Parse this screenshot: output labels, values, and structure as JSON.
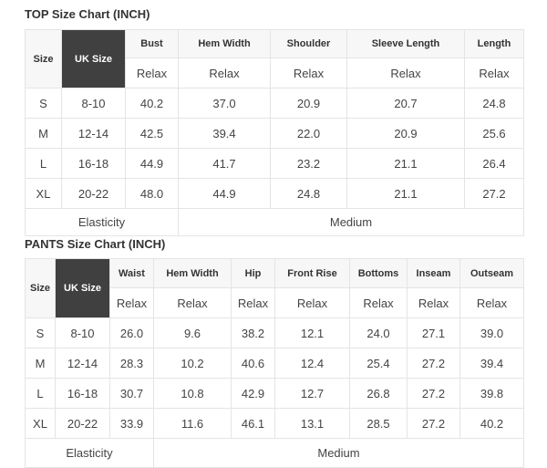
{
  "top": {
    "title": "TOP Size Chart (INCH)",
    "size_label": "Size",
    "uk_label": "UK Size",
    "columns": [
      "Bust",
      "Hem Width",
      "Shoulder",
      "Sleeve Length",
      "Length"
    ],
    "fit": [
      "Relax",
      "Relax",
      "Relax",
      "Relax",
      "Relax"
    ],
    "rows": [
      [
        "S",
        "8-10",
        "40.2",
        "37.0",
        "20.9",
        "20.7",
        "24.8"
      ],
      [
        "M",
        "12-14",
        "42.5",
        "39.4",
        "22.0",
        "20.9",
        "25.6"
      ],
      [
        "L",
        "16-18",
        "44.9",
        "41.7",
        "23.2",
        "21.1",
        "26.4"
      ],
      [
        "XL",
        "20-22",
        "48.0",
        "44.9",
        "24.8",
        "21.1",
        "27.2"
      ]
    ],
    "elasticity_label": "Elasticity",
    "elasticity_value": "Medium"
  },
  "pants": {
    "title": "PANTS Size Chart (INCH)",
    "size_label": "Size",
    "uk_label": "UK Size",
    "columns": [
      "Waist",
      "Hem Width",
      "Hip",
      "Front Rise",
      "Bottoms",
      "Inseam",
      "Outseam"
    ],
    "fit": [
      "Relax",
      "Relax",
      "Relax",
      "Relax",
      "Relax",
      "Relax",
      "Relax"
    ],
    "rows": [
      [
        "S",
        "8-10",
        "26.0",
        "9.6",
        "38.2",
        "12.1",
        "24.0",
        "27.1",
        "39.0"
      ],
      [
        "M",
        "12-14",
        "28.3",
        "10.2",
        "40.6",
        "12.4",
        "25.4",
        "27.2",
        "39.4"
      ],
      [
        "L",
        "16-18",
        "30.7",
        "10.8",
        "42.9",
        "12.7",
        "26.8",
        "27.2",
        "39.8"
      ],
      [
        "XL",
        "20-22",
        "33.9",
        "11.6",
        "46.1",
        "13.1",
        "28.5",
        "27.2",
        "40.2"
      ]
    ],
    "elasticity_label": "Elasticity",
    "elasticity_value": "Medium"
  }
}
